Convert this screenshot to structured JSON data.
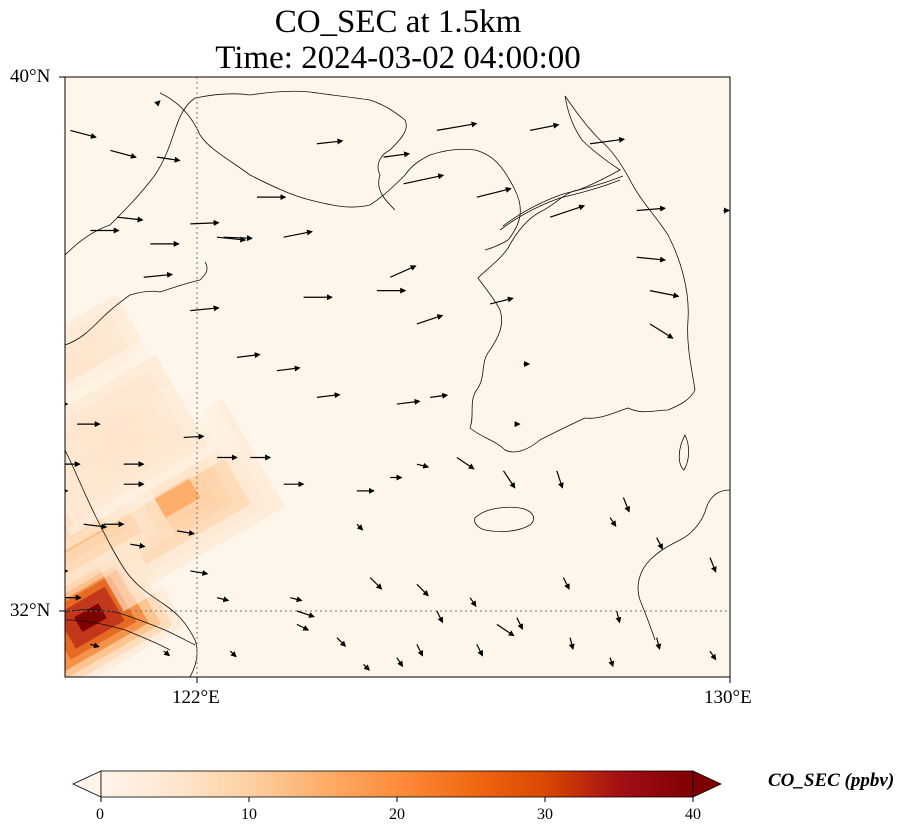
{
  "title": {
    "line1": "CO_SEC at 1.5km",
    "line2": "Time: 2024-03-02 04:00:00"
  },
  "map": {
    "region": {
      "lon_min": 119.6,
      "lon_max": 130,
      "lat_min": 31,
      "lat_max": 40
    },
    "lat_ticks": [
      {
        "value": 40,
        "label": "40°N"
      },
      {
        "value": 32,
        "label": "32°N"
      }
    ],
    "lon_ticks": [
      {
        "value": 122,
        "label": "122°E"
      },
      {
        "value": 130,
        "label": "130°E"
      }
    ],
    "gridlines": {
      "lon": [
        122
      ],
      "lat": [
        32
      ],
      "style": "dotted"
    },
    "field": {
      "variable": "CO_SEC",
      "units": "ppbv",
      "plumes": [
        {
          "lon": 120.4,
          "lat": 31.9,
          "value": 40
        },
        {
          "lon": 121.7,
          "lat": 33.7,
          "value": 14
        },
        {
          "lon": 119.8,
          "lat": 33.3,
          "value": 18
        },
        {
          "lon": 120.2,
          "lat": 35.5,
          "value": 7
        },
        {
          "lon": 120.8,
          "lat": 34.6,
          "value": 6
        }
      ]
    },
    "wind_vectors": [
      [
        120.1,
        39.2,
        0.45,
        -0.12
      ],
      [
        120.7,
        38.9,
        0.45,
        -0.12
      ],
      [
        121.4,
        38.8,
        0.4,
        -0.06
      ],
      [
        120.4,
        37.7,
        0.5,
        0
      ],
      [
        121.3,
        37.5,
        0.5,
        0
      ],
      [
        121.9,
        37.8,
        0.5,
        0.02
      ],
      [
        122.4,
        37.6,
        0.5,
        -0.02
      ],
      [
        120.8,
        37.9,
        0.45,
        -0.05
      ],
      [
        122.9,
        38.2,
        0.5,
        0
      ],
      [
        123.8,
        39.0,
        0.45,
        0.05
      ],
      [
        125.6,
        39.2,
        0.7,
        0.12
      ],
      [
        127.0,
        39.2,
        0.5,
        0.1
      ],
      [
        127.9,
        39.0,
        0.6,
        0.08
      ],
      [
        124.8,
        38.8,
        0.45,
        0.06
      ],
      [
        125.1,
        38.4,
        0.7,
        0.15
      ],
      [
        126.2,
        38.2,
        0.6,
        0.15
      ],
      [
        127.3,
        37.9,
        0.6,
        0.2
      ],
      [
        128.6,
        38.0,
        0.5,
        0.04
      ],
      [
        129.9,
        38.0,
        0.1,
        0
      ],
      [
        128.6,
        37.3,
        0.5,
        -0.05
      ],
      [
        128.8,
        36.8,
        0.5,
        -0.1
      ],
      [
        128.8,
        36.3,
        0.4,
        -0.25
      ],
      [
        126.4,
        36.6,
        0.4,
        0.1
      ],
      [
        125.3,
        36.3,
        0.45,
        0.15
      ],
      [
        124.9,
        37.0,
        0.45,
        0.2
      ],
      [
        124.7,
        36.8,
        0.5,
        0
      ],
      [
        123.6,
        36.7,
        0.5,
        0
      ],
      [
        123.3,
        37.6,
        0.5,
        0.1
      ],
      [
        122.3,
        37.6,
        0.5,
        -0.05
      ],
      [
        121.2,
        37.0,
        0.5,
        0.05
      ],
      [
        121.9,
        36.5,
        0.5,
        0.05
      ],
      [
        122.6,
        35.8,
        0.4,
        0.05
      ],
      [
        123.2,
        35.6,
        0.4,
        0.05
      ],
      [
        123.8,
        35.2,
        0.4,
        0.05
      ],
      [
        125.0,
        35.1,
        0.4,
        0.05
      ],
      [
        125.5,
        35.2,
        0.3,
        0.04
      ],
      [
        120.2,
        34.8,
        0.4,
        0
      ],
      [
        120.9,
        34.2,
        0.35,
        0
      ],
      [
        121.8,
        34.6,
        0.35,
        0.02
      ],
      [
        122.3,
        34.3,
        0.35,
        0
      ],
      [
        122.8,
        34.3,
        0.35,
        0
      ],
      [
        123.3,
        33.9,
        0.35,
        0
      ],
      [
        124.4,
        33.8,
        0.3,
        0
      ],
      [
        124.9,
        34.0,
        0.2,
        0
      ],
      [
        125.3,
        34.2,
        0.2,
        -0.05
      ],
      [
        125.9,
        34.3,
        0.3,
        -0.2
      ],
      [
        126.6,
        34.1,
        0.2,
        -0.3
      ],
      [
        127.4,
        34.1,
        0.1,
        -0.3
      ],
      [
        128.4,
        33.7,
        0.1,
        -0.25
      ],
      [
        128.9,
        33.1,
        0.1,
        -0.2
      ],
      [
        129.7,
        32.8,
        0.1,
        -0.25
      ],
      [
        120.9,
        33.9,
        0.35,
        0
      ],
      [
        120.6,
        33.3,
        0.35,
        0
      ],
      [
        121.0,
        33.0,
        0.25,
        -0.04
      ],
      [
        121.9,
        32.6,
        0.3,
        -0.05
      ],
      [
        122.3,
        32.2,
        0.2,
        -0.05
      ],
      [
        123.4,
        32.2,
        0.2,
        -0.05
      ],
      [
        123.5,
        32.0,
        0.3,
        -0.1
      ],
      [
        123.5,
        31.8,
        0.2,
        -0.1
      ],
      [
        124.1,
        31.6,
        0.15,
        -0.15
      ],
      [
        125.3,
        31.5,
        0.1,
        -0.2
      ],
      [
        126.2,
        31.5,
        0.1,
        -0.2
      ],
      [
        126.8,
        31.9,
        0.1,
        -0.2
      ],
      [
        127.6,
        31.6,
        0.05,
        -0.2
      ],
      [
        128.2,
        31.3,
        0.05,
        -0.15
      ],
      [
        128.9,
        31.6,
        0.05,
        -0.2
      ],
      [
        129.7,
        31.4,
        0.1,
        -0.15
      ],
      [
        120.4,
        31.5,
        0.15,
        -0.04
      ],
      [
        121.5,
        31.4,
        0.1,
        -0.08
      ],
      [
        122.5,
        31.4,
        0.1,
        -0.1
      ],
      [
        124.5,
        31.2,
        0.1,
        -0.1
      ],
      [
        125.0,
        31.3,
        0.1,
        -0.15
      ],
      [
        119.8,
        32.6,
        0.3,
        0
      ],
      [
        120.0,
        32.2,
        0.3,
        0
      ],
      [
        120.3,
        33.3,
        0.4,
        -0.05
      ],
      [
        121.7,
        33.2,
        0.3,
        -0.05
      ],
      [
        119.8,
        33.8,
        0.3,
        0
      ],
      [
        119.9,
        34.2,
        0.4,
        0
      ],
      [
        119.8,
        35.1,
        0.3,
        0
      ],
      [
        124.4,
        33.3,
        0.1,
        -0.1
      ],
      [
        126.5,
        31.8,
        0.3,
        -0.2
      ],
      [
        127.5,
        32.5,
        0.1,
        -0.2
      ],
      [
        128.3,
        32.0,
        0.05,
        -0.2
      ],
      [
        128.2,
        33.4,
        0.1,
        -0.15
      ],
      [
        124.6,
        32.5,
        0.2,
        -0.2
      ],
      [
        125.3,
        32.4,
        0.2,
        -0.2
      ],
      [
        125.6,
        32.0,
        0.1,
        -0.2
      ],
      [
        126.1,
        32.2,
        0.1,
        -0.15
      ],
      [
        121.4,
        39.6,
        0.05,
        0.05
      ],
      [
        119.8,
        37.4,
        0.1,
        0
      ],
      [
        126.8,
        34.8,
        0.05,
        0
      ],
      [
        126.9,
        35.7,
        0.1,
        0
      ]
    ],
    "colorbar": {
      "ticks": [
        0,
        10,
        20,
        30,
        40
      ],
      "label": "CO_SEC (ppbv)",
      "colors": [
        "#fff5eb",
        "#fee6ce",
        "#fdd0a2",
        "#fdae6b",
        "#fd8d3c",
        "#f16913",
        "#d94801",
        "#a50f15",
        "#7f0000"
      ]
    }
  }
}
